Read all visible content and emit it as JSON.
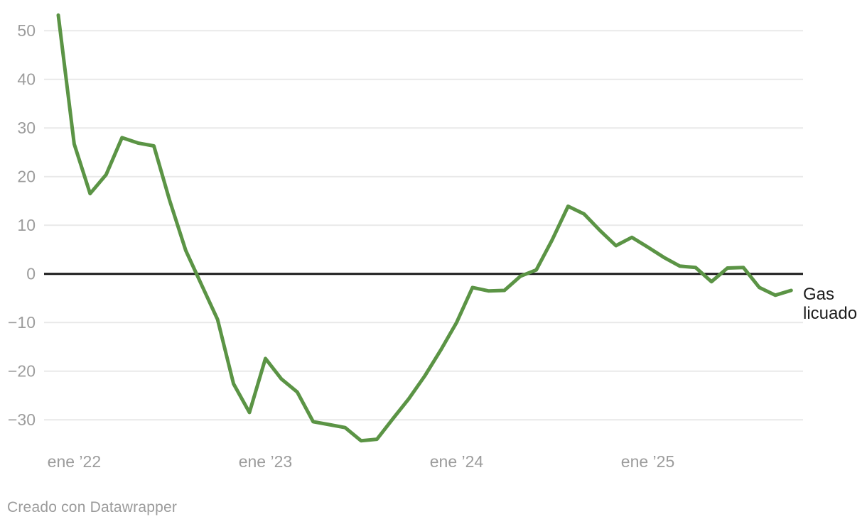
{
  "chart_data": {
    "type": "line",
    "title": "",
    "xlabel": "",
    "ylabel": "",
    "grid": "horizontal",
    "zero_baseline": true,
    "legend_position": "end-of-line-label",
    "x": [
      "dic 2021",
      "ene 2022",
      "feb 2022",
      "mar 2022",
      "abr 2022",
      "may 2022",
      "jun 2022",
      "jul 2022",
      "ago 2022",
      "sep 2022",
      "oct 2022",
      "nov 2022",
      "dic 2022",
      "ene 2023",
      "feb 2023",
      "mar 2023",
      "abr 2023",
      "may 2023",
      "jun 2023",
      "jul 2023",
      "ago 2023",
      "sep 2023",
      "oct 2023",
      "nov 2023",
      "dic 2023",
      "ene 2024",
      "feb 2024",
      "mar 2024",
      "abr 2024",
      "may 2024",
      "jun 2024",
      "jul 2024",
      "ago 2024",
      "sep 2024",
      "oct 2024",
      "nov 2024",
      "dic 2024",
      "ene 2025",
      "feb 2025",
      "mar 2025",
      "abr 2025",
      "may 2025",
      "jun 2025",
      "jul 2025",
      "ago 2025",
      "sep 2025",
      "oct 2025"
    ],
    "series": [
      {
        "name": "Gas licuado",
        "color": "#5b9445",
        "values": [
          53.2,
          26.7,
          16.5,
          20.4,
          28.0,
          26.9,
          26.3,
          15.0,
          4.8,
          -2.3,
          -9.4,
          -22.6,
          -28.5,
          -17.4,
          -21.6,
          -24.3,
          -30.4,
          -31.0,
          -31.6,
          -34.3,
          -34.0,
          -29.8,
          -25.7,
          -21.0,
          -15.7,
          -10.0,
          -2.8,
          -3.5,
          -3.4,
          -0.5,
          0.8,
          7.0,
          13.9,
          12.3,
          8.9,
          5.8,
          7.5,
          5.5,
          3.4,
          1.6,
          1.3,
          -1.6,
          1.2,
          1.3,
          -2.8,
          -4.4,
          -3.4
        ]
      }
    ],
    "x_ticks": [
      {
        "label": "ene ’22",
        "index": 1
      },
      {
        "label": "ene ’23",
        "index": 13
      },
      {
        "label": "ene ’24",
        "index": 25
      },
      {
        "label": "ene ’25",
        "index": 37
      }
    ],
    "y_ticks": [
      {
        "label": "50",
        "value": 50
      },
      {
        "label": "40",
        "value": 40
      },
      {
        "label": "30",
        "value": 30
      },
      {
        "label": "20",
        "value": 20
      },
      {
        "label": "10",
        "value": 10
      },
      {
        "label": "0",
        "value": 0
      },
      {
        "label": "−10",
        "value": -10
      },
      {
        "label": "−20",
        "value": -20
      },
      {
        "label": "−30",
        "value": -30
      }
    ],
    "ylim": [
      -36,
      54
    ],
    "line_label_lines": [
      "Gas",
      "licuado"
    ]
  },
  "colors": {
    "line": "#5b9445",
    "grid": "#e9e9e9",
    "zero_line": "#1a1a1a",
    "tick_text": "#9c9c9c",
    "label_text": "#1d1d1d",
    "footer_text": "#9b9b9b",
    "background": "#ffffff"
  },
  "footer": {
    "credit": "Creado con Datawrapper"
  }
}
